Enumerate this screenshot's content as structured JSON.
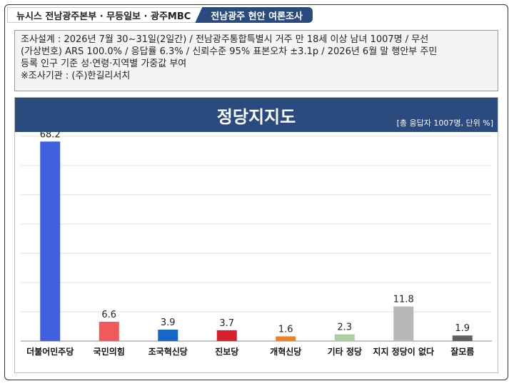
{
  "header": {
    "left": "뉴시스  전남광주본부 · 무등일보 · 광주MBC",
    "right": "전남광주  현안  여론조사"
  },
  "info": {
    "line1": "조사설계 : 2026년 7월 30~31일(2일간) / 전남광주통합특별시 거주 만 18세 이상 남녀 1007명 / 무선",
    "line2": "(가상번호) ARS 100.0% / 응답률 6.3% / 신뢰수준 95% 표본오차 ±3.1p / 2026년 6월 말 행안부 주민",
    "line3": "등록 인구 기준 성·연령·지역별 가중값 부여",
    "line4": "※조사기관 : (주)한길리서치"
  },
  "chart_data": {
    "type": "bar",
    "title": "정당지지도",
    "note": "[총 응답자 1007명, 단위 %]",
    "categories": [
      "더불어민주당",
      "국민의힘",
      "조국혁신당",
      "진보당",
      "개혁신당",
      "기타 정당",
      "지지 정당이 없다",
      "잘모름"
    ],
    "values": [
      68.2,
      6.6,
      3.9,
      3.7,
      1.6,
      2.3,
      11.8,
      1.9
    ],
    "colors": [
      "#4060e0",
      "#f05a5a",
      "#1668c8",
      "#d8202a",
      "#f08020",
      "#a8d0a0",
      "#b8b8b8",
      "#606060"
    ],
    "ylim": [
      0,
      70
    ],
    "grid": true
  }
}
